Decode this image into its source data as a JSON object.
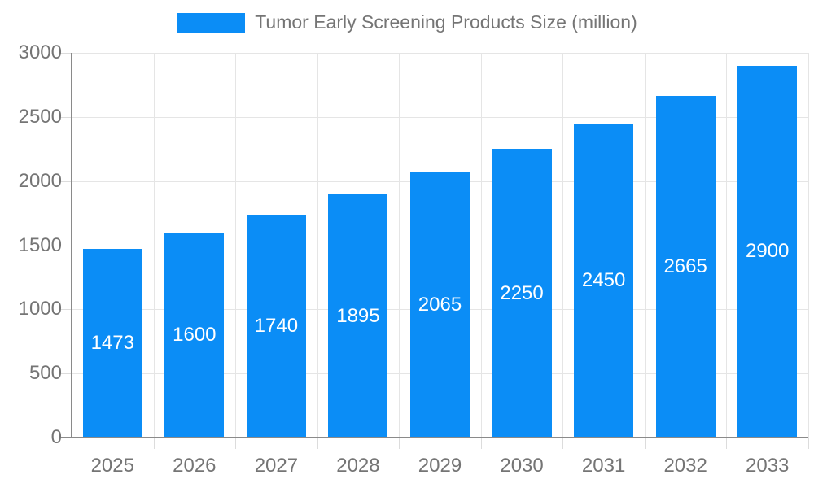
{
  "chart_data": {
    "type": "bar",
    "title": "",
    "legend": "Tumor Early Screening Products Size (million)",
    "categories": [
      "2025",
      "2026",
      "2027",
      "2028",
      "2029",
      "2030",
      "2031",
      "2032",
      "2033"
    ],
    "values": [
      1473,
      1600,
      1740,
      1895,
      2065,
      2250,
      2450,
      2665,
      2900
    ],
    "xlabel": "",
    "ylabel": "",
    "ylim": [
      0,
      3000
    ],
    "ytick_step": 500,
    "ytick_labels": [
      "0",
      "500",
      "1000",
      "1500",
      "2000",
      "2500",
      "3000"
    ],
    "grid": true,
    "legend_position": "top",
    "data_labels": "inside-center",
    "colors": {
      "bar": "#0b8df6",
      "bar_value_text": "#ffffff",
      "axis_text": "#757575",
      "legend_text": "#757575",
      "gridline": "#e5e5e5",
      "tick": "#dcdcdc",
      "axis_line": "#8a8a8a",
      "background": "#ffffff"
    }
  }
}
